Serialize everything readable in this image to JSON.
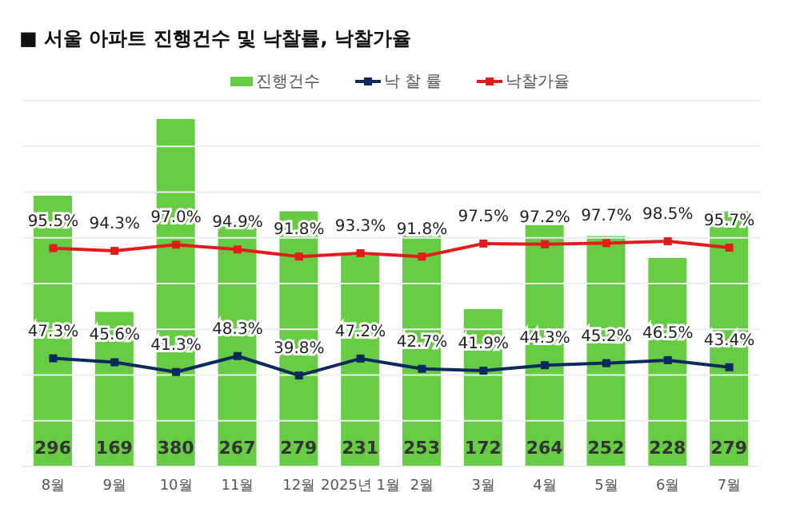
{
  "chart_data": {
    "type": "bar",
    "title": "■ 서울 아파트 진행건수 및 낙찰률, 낙찰가율",
    "categories": [
      "8월",
      "9월",
      "10월",
      "11월",
      "12월",
      "2025년 1월",
      "2월",
      "3월",
      "4월",
      "5월",
      "6월",
      "7월"
    ],
    "series": [
      {
        "name": "진행건수",
        "color": "#66cc44",
        "values": [
          296,
          169,
          380,
          267,
          279,
          231,
          253,
          172,
          264,
          252,
          228,
          279
        ]
      },
      {
        "name": "낙 찰 률",
        "type": "line",
        "axis": "y2",
        "color": "#0d2a5c",
        "values": [
          47.3,
          45.6,
          41.3,
          48.3,
          39.8,
          47.2,
          42.7,
          41.9,
          44.3,
          45.2,
          46.5,
          43.4
        ],
        "value_labels": [
          "47.3%",
          "45.6%",
          "41.3%",
          "48.3%",
          "39.8%",
          "47.2%",
          "42.7%",
          "41.9%",
          "44.3%",
          "45.2%",
          "46.5%",
          "43.4%"
        ]
      },
      {
        "name": "낙찰가율",
        "type": "line",
        "axis": "y2",
        "color": "#e31b1b",
        "values": [
          95.5,
          94.3,
          97.0,
          94.9,
          91.8,
          93.3,
          91.8,
          97.5,
          97.2,
          97.7,
          98.5,
          95.7
        ],
        "value_labels": [
          "95.5%",
          "94.3%",
          "97.0%",
          "94.9%",
          "91.8%",
          "93.3%",
          "91.8%",
          "97.5%",
          "97.2%",
          "97.7%",
          "98.5%",
          "95.7%"
        ]
      }
    ],
    "ylim": [
      0,
      400
    ],
    "yticks": [
      {
        "value": 0,
        "label": null
      },
      {
        "value": 50,
        "label": null
      },
      {
        "value": 100,
        "label": null
      },
      {
        "value": 150,
        "label": null
      },
      {
        "value": 200,
        "label": null
      },
      {
        "value": 250,
        "label": null
      },
      {
        "value": 300,
        "label": null
      },
      {
        "value": 350,
        "label": null
      },
      {
        "value": 400,
        "label": null
      }
    ],
    "y2lim": [
      0,
      160
    ],
    "tick_labels": "x",
    "grid": "y",
    "legend": "top",
    "marker": "square",
    "data_labels": true
  }
}
